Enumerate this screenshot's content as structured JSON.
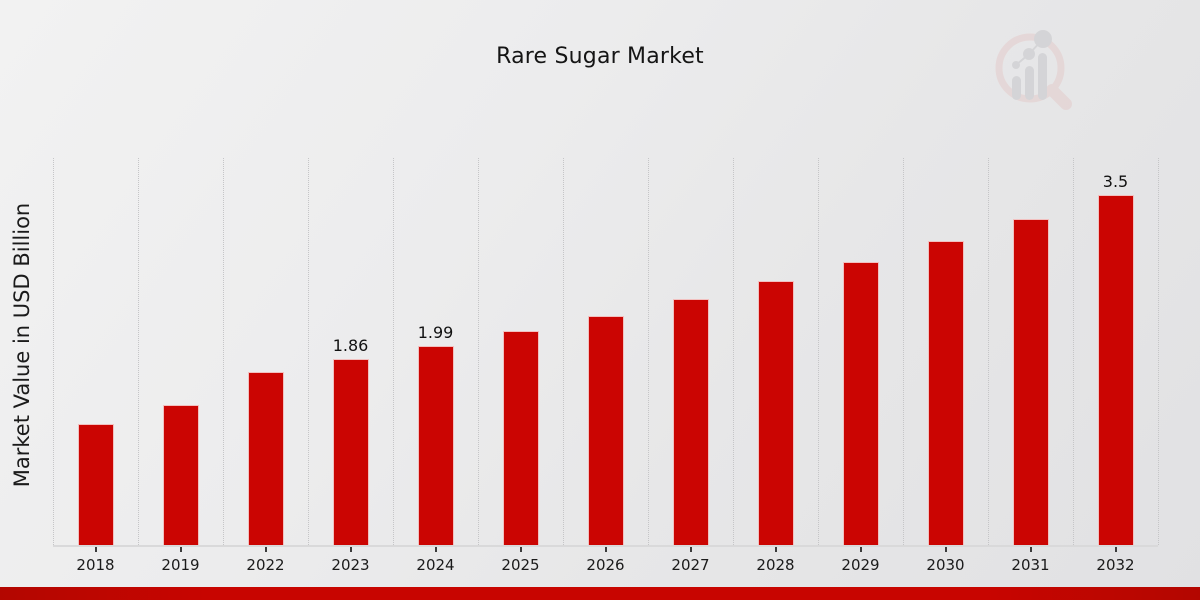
{
  "header": {
    "title": "Rare Sugar Market"
  },
  "branding": {
    "logo_name": "magnifier-bar-chart-watermark"
  },
  "colors": {
    "bar": "#cb0502",
    "accent_strip": "#c80500",
    "background": "#e9e9ea",
    "gridline": "#c5c5c7",
    "text": "#1a1a1a",
    "logo_ring": "#e4c9c9",
    "logo_bars": "#c4c4c8"
  },
  "chart_data": {
    "type": "bar",
    "title": "Rare Sugar Market",
    "xlabel": "",
    "ylabel": "Market Value in USD Billion",
    "categories": [
      "2018",
      "2019",
      "2022",
      "2023",
      "2024",
      "2025",
      "2026",
      "2027",
      "2028",
      "2029",
      "2030",
      "2031",
      "2032"
    ],
    "values": [
      1.21,
      1.4,
      1.73,
      1.86,
      1.99,
      2.14,
      2.29,
      2.46,
      2.64,
      2.83,
      3.04,
      3.26,
      3.5
    ],
    "labeled_points": [
      {
        "category": "2023",
        "label": "1.86"
      },
      {
        "category": "2024",
        "label": "1.99"
      },
      {
        "category": "2032",
        "label": "3.5"
      }
    ],
    "ylim": [
      0,
      3.87
    ],
    "y_ticks_visible": false,
    "grid": "vertical dotted lines between categories",
    "legend": "none",
    "bar_color": "#cb0502"
  }
}
